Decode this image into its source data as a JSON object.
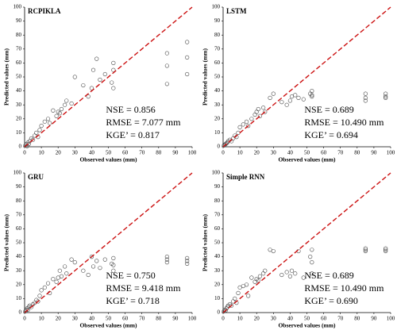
{
  "chart_data": [
    {
      "type": "scatter",
      "title": "RCPIKLA",
      "xlabel": "Observed values (mm)",
      "ylabel": "Predicted values (mm)",
      "annotations": [
        "NSE = 0.856",
        "RMSE = 7.077 mm",
        "KGE’ = 0.817"
      ],
      "x": [
        0.5,
        1,
        1.5,
        2,
        2.5,
        3,
        4,
        5,
        6,
        7,
        8,
        9,
        10,
        12,
        14,
        15,
        17,
        19,
        20,
        21,
        22,
        24,
        25,
        28,
        30,
        35,
        38,
        40,
        41,
        43,
        45,
        48,
        52,
        53,
        53,
        53,
        85,
        85,
        85,
        97,
        97,
        97
      ],
      "y": [
        1,
        2,
        0.5,
        3,
        2,
        4,
        6,
        5,
        8,
        10,
        7,
        12,
        15,
        18,
        20,
        17,
        26,
        22,
        25,
        24,
        27,
        30,
        33,
        31,
        50,
        44,
        36,
        42,
        55,
        63,
        48,
        52,
        46,
        60,
        42,
        55,
        45,
        58,
        67,
        52,
        64,
        75
      ],
      "color": "#444444",
      "reference_line_color": "#cc1111",
      "xlim": [
        0,
        100
      ],
      "ylim": [
        0,
        100
      ],
      "xticks": [
        0,
        10,
        20,
        30,
        40,
        50,
        60,
        70,
        80,
        90,
        100
      ],
      "yticks": [
        0,
        10,
        20,
        30,
        40,
        50,
        60,
        70,
        80,
        90,
        100
      ]
    },
    {
      "type": "scatter",
      "title": "LSTM",
      "xlabel": "Observed values (mm)",
      "ylabel": "Predicted values (mm)",
      "annotations": [
        "NSE = 0.689",
        "RMSE = 10.490 mm",
        "KGE’ = 0.694"
      ],
      "x": [
        0.5,
        1,
        1.5,
        2,
        2.5,
        3,
        4,
        5,
        6,
        7,
        8,
        9,
        10,
        12,
        14,
        15,
        17,
        19,
        20,
        21,
        22,
        24,
        25,
        28,
        30,
        35,
        38,
        40,
        41,
        43,
        45,
        48,
        52,
        53,
        53,
        53,
        85,
        85,
        85,
        97,
        97,
        97
      ],
      "y": [
        1,
        1.5,
        2,
        2.5,
        3,
        4,
        5,
        4,
        6,
        8,
        7,
        10,
        14,
        16,
        18,
        15,
        20,
        23,
        25,
        27,
        22,
        28,
        25,
        35,
        38,
        32,
        30,
        33,
        36,
        37,
        35,
        34,
        38,
        36,
        40,
        37,
        35,
        38,
        33,
        36,
        38,
        35
      ],
      "color": "#444444",
      "reference_line_color": "#cc1111",
      "xlim": [
        0,
        100
      ],
      "ylim": [
        0,
        100
      ],
      "xticks": [
        0,
        10,
        20,
        30,
        40,
        50,
        60,
        70,
        80,
        90,
        100
      ],
      "yticks": [
        0,
        10,
        20,
        30,
        40,
        50,
        60,
        70,
        80,
        90,
        100
      ]
    },
    {
      "type": "scatter",
      "title": "GRU",
      "xlabel": "Observed values (mm)",
      "ylabel": "Predicted values (mm)",
      "annotations": [
        "NSE = 0.750",
        "RMSE = 9.418 mm",
        "KGE’ = 0.718"
      ],
      "x": [
        0.5,
        1,
        1.5,
        2,
        2.5,
        3,
        4,
        5,
        6,
        7,
        8,
        9,
        10,
        12,
        14,
        15,
        17,
        19,
        20,
        21,
        22,
        24,
        25,
        28,
        30,
        35,
        38,
        40,
        41,
        43,
        45,
        48,
        52,
        53,
        53,
        53,
        85,
        85,
        85,
        97,
        97,
        97
      ],
      "y": [
        1,
        2,
        3,
        2,
        4,
        5,
        4,
        6,
        7,
        9,
        8,
        12,
        16,
        18,
        21,
        14,
        24,
        22,
        25,
        30,
        26,
        33,
        28,
        38,
        36,
        30,
        27,
        40,
        33,
        37,
        32,
        38,
        35,
        30,
        39,
        34,
        36,
        40,
        38,
        35,
        39,
        37
      ],
      "color": "#444444",
      "reference_line_color": "#cc1111",
      "xlim": [
        0,
        100
      ],
      "ylim": [
        0,
        100
      ],
      "xticks": [
        0,
        10,
        20,
        30,
        40,
        50,
        60,
        70,
        80,
        90,
        100
      ],
      "yticks": [
        0,
        10,
        20,
        30,
        40,
        50,
        60,
        70,
        80,
        90,
        100
      ]
    },
    {
      "type": "scatter",
      "title": "Simple RNN",
      "xlabel": "Observed values (mm)",
      "ylabel": "Predicted values (mm)",
      "annotations": [
        "NSE = 0.689",
        "RMSE = 10.490 mm",
        "KGE’ = 0.690"
      ],
      "x": [
        0.5,
        1,
        1.5,
        2,
        2.5,
        3,
        4,
        5,
        6,
        7,
        8,
        9,
        10,
        12,
        14,
        15,
        17,
        19,
        20,
        21,
        22,
        24,
        25,
        28,
        30,
        35,
        38,
        40,
        41,
        43,
        45,
        48,
        52,
        53,
        53,
        53,
        85,
        85,
        85,
        97,
        97,
        97
      ],
      "y": [
        1,
        2,
        1.5,
        3,
        4,
        5,
        6,
        5,
        8,
        10,
        7,
        14,
        18,
        19,
        20,
        12,
        25,
        22,
        24,
        23,
        26,
        28,
        30,
        45,
        44,
        27,
        29,
        26,
        30,
        28,
        44,
        25,
        40,
        45,
        28,
        36,
        44,
        46,
        45,
        44,
        46,
        45
      ],
      "color": "#444444",
      "reference_line_color": "#cc1111",
      "xlim": [
        0,
        100
      ],
      "ylim": [
        0,
        100
      ],
      "xticks": [
        0,
        10,
        20,
        30,
        40,
        50,
        60,
        70,
        80,
        90,
        100
      ],
      "yticks": [
        0,
        10,
        20,
        30,
        40,
        50,
        60,
        70,
        80,
        90,
        100
      ]
    }
  ]
}
